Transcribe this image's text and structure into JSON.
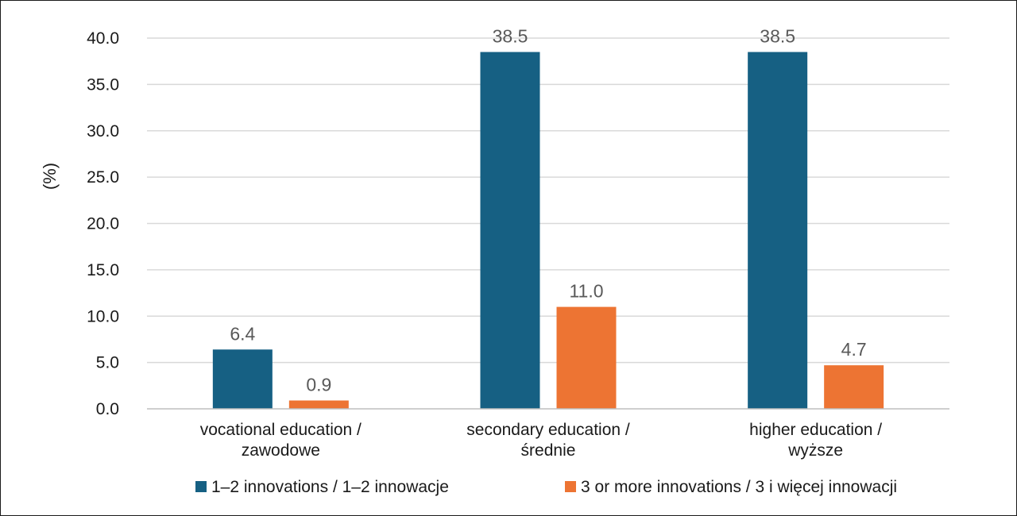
{
  "chart_data": {
    "type": "bar",
    "ylabel": "(%)",
    "ylim": [
      0,
      40
    ],
    "yticks": [
      "0.0",
      "5.0",
      "10.0",
      "15.0",
      "20.0",
      "25.0",
      "30.0",
      "35.0",
      "40.0"
    ],
    "categories": [
      [
        "vocational education /",
        "zawodowe"
      ],
      [
        "secondary education /",
        "średnie"
      ],
      [
        "higher education /",
        "wyższe"
      ]
    ],
    "series": [
      {
        "name": "1–2 innovations / 1–2 innowacje",
        "color": "#166083",
        "values": [
          6.4,
          38.5,
          38.5
        ],
        "labels": [
          "6.4",
          "38.5",
          "38.5"
        ]
      },
      {
        "name": "3 or more innovations / 3 i więcej innowacji",
        "color": "#ED7433",
        "values": [
          0.9,
          11.0,
          4.7
        ],
        "labels": [
          "0.9",
          "11.0",
          "4.7"
        ]
      }
    ],
    "grid": true,
    "legend_position": "bottom"
  }
}
